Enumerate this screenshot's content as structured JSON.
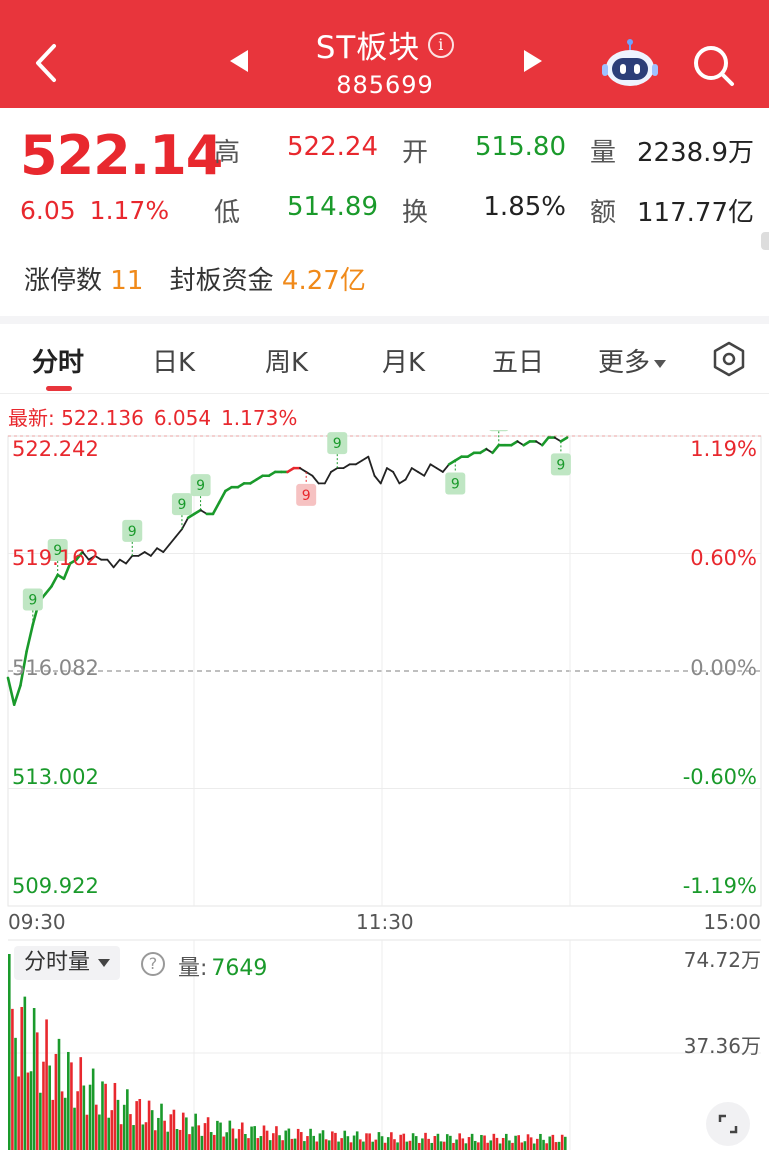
{
  "header": {
    "title": "ST板块",
    "code": "885699",
    "info_icon": "info-icon",
    "robot_icon": "robot-assistant-icon",
    "search_icon": "search-icon"
  },
  "quote": {
    "price": "522.14",
    "change": "6.05",
    "change_pct": "1.17%",
    "high_label": "高",
    "high": "522.24",
    "open_label": "开",
    "open": "515.80",
    "volume_label": "量",
    "volume": "2238.9万",
    "low_label": "低",
    "low": "514.89",
    "turnover_label": "换",
    "turnover": "1.85%",
    "amount_label": "额",
    "amount": "117.77亿",
    "limit_up_label": "涨停数",
    "limit_up": "11",
    "seal_fund_label": "封板资金",
    "seal_fund": "4.27亿"
  },
  "tabs": [
    {
      "label": "分时",
      "active": true
    },
    {
      "label": "日K"
    },
    {
      "label": "周K"
    },
    {
      "label": "月K"
    },
    {
      "label": "五日"
    },
    {
      "label": "更多"
    }
  ],
  "latest": {
    "label": "最新: 522.136",
    "change": "6.054",
    "pct": "1.173%"
  },
  "chart_data": {
    "type": "line",
    "y_ticks": [
      "522.242",
      "519.162",
      "516.082",
      "513.002",
      "509.922"
    ],
    "pct_ticks": [
      "1.19%",
      "0.60%",
      "0.00%",
      "-0.60%",
      "-1.19%"
    ],
    "x_ticks": [
      "09:30",
      "11:30",
      "15:00"
    ],
    "ylim": [
      509.922,
      522.242
    ],
    "prev_close": 516.082,
    "price_series": [
      515.9,
      515.2,
      515.7,
      516.6,
      517.3,
      517.9,
      518.1,
      518.3,
      518.6,
      518.5,
      518.9,
      519.0,
      519.2,
      519.0,
      519.1,
      519.0,
      519.0,
      518.8,
      519.0,
      518.9,
      519.1,
      519.1,
      519.2,
      519.1,
      519.3,
      519.2,
      519.4,
      519.6,
      519.8,
      520.1,
      520.2,
      520.3,
      520.2,
      520.2,
      520.5,
      520.8,
      520.9,
      520.9,
      521.0,
      521.0,
      521.1,
      521.2,
      521.2,
      521.3,
      521.3,
      521.3,
      521.4,
      521.4,
      521.3,
      521.2,
      521.0,
      521.0,
      521.3,
      521.4,
      521.4,
      521.5,
      521.5,
      521.6,
      521.7,
      521.2,
      521.0,
      521.4,
      521.3,
      521.0,
      521.1,
      521.4,
      521.3,
      521.2,
      521.5,
      521.4,
      521.3,
      521.5,
      521.6,
      521.7,
      521.7,
      521.8,
      521.8,
      521.9,
      521.8,
      522.0,
      522.0,
      522.0,
      522.1,
      522.0,
      522.1,
      522.1,
      522.0,
      522.2,
      522.2,
      522.1,
      522.2
    ],
    "price_series_note": "sampled morning and early afternoon intraday closes",
    "markers": [
      {
        "idx": 4,
        "label": "9",
        "color": "green"
      },
      {
        "idx": 8,
        "label": "9",
        "color": "green"
      },
      {
        "idx": 20,
        "label": "9",
        "color": "green"
      },
      {
        "idx": 28,
        "label": "9",
        "color": "green"
      },
      {
        "idx": 31,
        "label": "9",
        "color": "green"
      },
      {
        "idx": 48,
        "label": "9",
        "color": "red"
      },
      {
        "idx": 53,
        "label": "9",
        "color": "green"
      },
      {
        "idx": 72,
        "label": "9",
        "color": "green"
      },
      {
        "idx": 79,
        "label": "9",
        "color": "green"
      },
      {
        "idx": 89,
        "label": "9",
        "color": "green"
      }
    ],
    "volume": {
      "control_label": "分时量",
      "value_label": "量:",
      "value": "7649",
      "max_label": "74.72万",
      "mid_label": "37.36万",
      "max": 74.72
    },
    "colors": {
      "up": "#e8282e",
      "down": "#1a9a2b",
      "line": "#222",
      "orange": "#f08a1a"
    }
  },
  "icons": {
    "settings": "settings-hexagon-icon",
    "help": "help-icon",
    "expand": "expand-icon"
  }
}
